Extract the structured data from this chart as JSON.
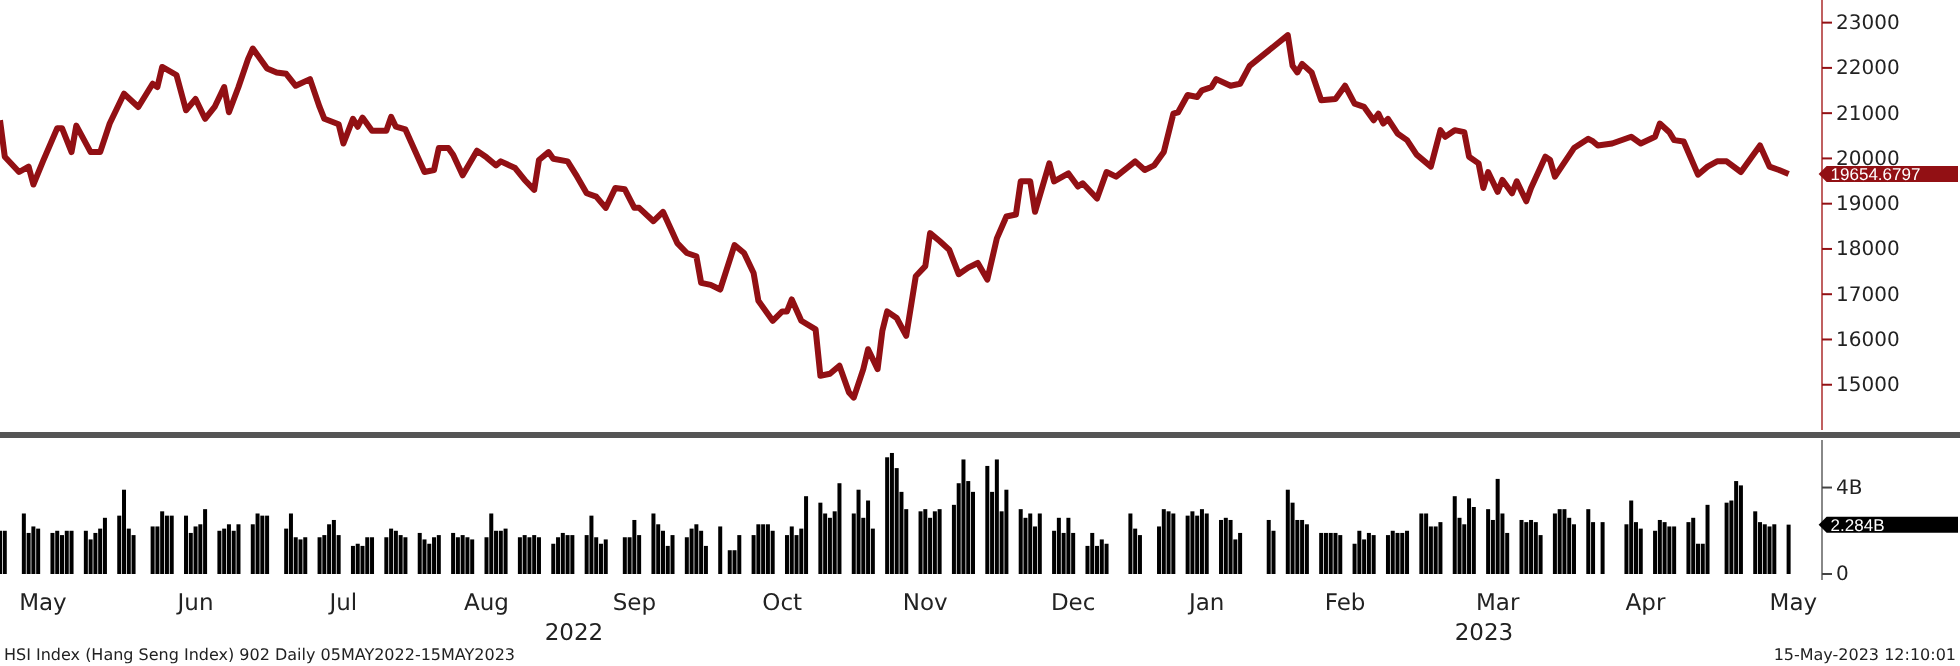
{
  "chart_data": [
    {
      "type": "line",
      "xlim": [
        "2022-05-05",
        "2023-05-22"
      ],
      "ylim": [
        14000,
        23500
      ],
      "yticks": [
        15000,
        16000,
        17000,
        18000,
        19000,
        20000,
        21000,
        22000,
        23000
      ],
      "tick_labels": "y",
      "grid": false,
      "series": [
        {
          "color": "#921014",
          "x": [
            "2022-05-05",
            "2022-05-06",
            "2022-05-09",
            "2022-05-11",
            "2022-05-12",
            "2022-05-14",
            "2022-05-17",
            "2022-05-18",
            "2022-05-20",
            "2022-05-21",
            "2022-05-24",
            "2022-05-26",
            "2022-05-28",
            "2022-05-31",
            "2022-06-03",
            "2022-06-06",
            "2022-06-07",
            "2022-06-08",
            "2022-06-11",
            "2022-06-13",
            "2022-06-15",
            "2022-06-17",
            "2022-06-19",
            "2022-06-21",
            "2022-06-22",
            "2022-06-24",
            "2022-06-26",
            "2022-06-27",
            "2022-06-30",
            "2022-07-02",
            "2022-07-04",
            "2022-07-06",
            "2022-07-09",
            "2022-07-11",
            "2022-07-12",
            "2022-07-15",
            "2022-07-16",
            "2022-07-18",
            "2022-07-19",
            "2022-07-20",
            "2022-07-22",
            "2022-07-25",
            "2022-07-26",
            "2022-07-27",
            "2022-07-29",
            "2022-07-31",
            "2022-08-02",
            "2022-08-04",
            "2022-08-05",
            "2022-08-07",
            "2022-08-08",
            "2022-08-10",
            "2022-08-13",
            "2022-08-15",
            "2022-08-17",
            "2022-08-18",
            "2022-08-21",
            "2022-08-23",
            "2022-08-25",
            "2022-08-26",
            "2022-08-28",
            "2022-08-29",
            "2022-09-01",
            "2022-09-03",
            "2022-09-05",
            "2022-09-07",
            "2022-09-09",
            "2022-09-11",
            "2022-09-13",
            "2022-09-15",
            "2022-09-16",
            "2022-09-19",
            "2022-09-21",
            "2022-09-24",
            "2022-09-26",
            "2022-09-28",
            "2022-09-29",
            "2022-10-01",
            "2022-10-03",
            "2022-10-06",
            "2022-10-08",
            "2022-10-10",
            "2022-10-11",
            "2022-10-14",
            "2022-10-16",
            "2022-10-17",
            "2022-10-18",
            "2022-10-20",
            "2022-10-23",
            "2022-10-24",
            "2022-10-26",
            "2022-10-28",
            "2022-10-30",
            "2022-10-31",
            "2022-11-02",
            "2022-11-03",
            "2022-11-05",
            "2022-11-06",
            "2022-11-07",
            "2022-11-09",
            "2022-11-11",
            "2022-11-13",
            "2022-11-15",
            "2022-11-16",
            "2022-11-18",
            "2022-11-20",
            "2022-11-22",
            "2022-11-24",
            "2022-11-26",
            "2022-11-28",
            "2022-11-30",
            "2022-12-02",
            "2022-12-04",
            "2022-12-05",
            "2022-12-07",
            "2022-12-08",
            "2022-12-11",
            "2022-12-12",
            "2022-12-15",
            "2022-12-17",
            "2022-12-18",
            "2022-12-21",
            "2022-12-23",
            "2022-12-25",
            "2022-12-29",
            "2022-12-31",
            "2023-01-02",
            "2023-01-04",
            "2023-01-06",
            "2023-01-07",
            "2023-01-09",
            "2023-01-11",
            "2023-01-12",
            "2023-01-14",
            "2023-01-15",
            "2023-01-18",
            "2023-01-20",
            "2023-01-22",
            "2023-01-30",
            "2023-01-31",
            "2023-02-01",
            "2023-02-02",
            "2023-02-04",
            "2023-02-06",
            "2023-02-09",
            "2023-02-11",
            "2023-02-13",
            "2023-02-15",
            "2023-02-17",
            "2023-02-18",
            "2023-02-19",
            "2023-02-20",
            "2023-02-22",
            "2023-02-24",
            "2023-02-26",
            "2023-03-01",
            "2023-03-03",
            "2023-03-04",
            "2023-03-06",
            "2023-03-08",
            "2023-03-09",
            "2023-03-11",
            "2023-03-12",
            "2023-03-13",
            "2023-03-15",
            "2023-03-16",
            "2023-03-18",
            "2023-03-19",
            "2023-03-21",
            "2023-03-22",
            "2023-03-25",
            "2023-03-26",
            "2023-03-27",
            "2023-03-31",
            "2023-04-03",
            "2023-04-04",
            "2023-04-05",
            "2023-04-08",
            "2023-04-12",
            "2023-04-14",
            "2023-04-17",
            "2023-04-18",
            "2023-04-20",
            "2023-04-21",
            "2023-04-23",
            "2023-04-26",
            "2023-04-28",
            "2023-04-30",
            "2023-05-02",
            "2023-05-05",
            "2023-05-07",
            "2023-05-09",
            "2023-05-11",
            "2023-05-13",
            "2023-05-15"
          ],
          "values": [
            20844,
            20038,
            19700,
            19819,
            19423,
            19935,
            20668,
            20668,
            20140,
            20725,
            20140,
            20140,
            20770,
            21430,
            21137,
            21650,
            21577,
            22020,
            21843,
            21064,
            21313,
            20875,
            21137,
            21577,
            21020,
            21577,
            22194,
            22428,
            21988,
            21900,
            21870,
            21605,
            21752,
            21137,
            20875,
            20756,
            20330,
            20875,
            20700,
            20902,
            20610,
            20610,
            20918,
            20700,
            20640,
            20170,
            19700,
            19744,
            20228,
            20228,
            20083,
            19626,
            20170,
            20024,
            19847,
            19935,
            19788,
            19524,
            19304,
            19964,
            20140,
            19994,
            19935,
            19597,
            19230,
            19157,
            18908,
            19348,
            19318,
            18908,
            18908,
            18613,
            18820,
            18130,
            17910,
            17839,
            17250,
            17206,
            17104,
            18085,
            17910,
            17470,
            16853,
            16413,
            16620,
            16620,
            16884,
            16413,
            16224,
            15199,
            15243,
            15419,
            14829,
            14715,
            15344,
            15784,
            15344,
            16193,
            16620,
            16474,
            16079,
            17398,
            17619,
            18350,
            18174,
            17984,
            17442,
            17588,
            17691,
            17324,
            18233,
            18717,
            18760,
            19493,
            19493,
            18820,
            19891,
            19493,
            19669,
            19379,
            19451,
            19115,
            19700,
            19597,
            19935,
            19744,
            19847,
            20140,
            20989,
            21020,
            21401,
            21357,
            21504,
            21577,
            21752,
            21605,
            21650,
            22045,
            22723,
            22045,
            21900,
            22089,
            21900,
            21284,
            21313,
            21605,
            21209,
            21137,
            20844,
            20989,
            20770,
            20875,
            20551,
            20404,
            20083,
            19819,
            20624,
            20479,
            20624,
            20580,
            20038,
            19891,
            19348,
            19700,
            19260,
            19524,
            19230,
            19493,
            19053,
            19348,
            20038,
            19964,
            19597,
            20228,
            20433,
            20374,
            20286,
            20330,
            20479,
            20330,
            20479,
            20770,
            20580,
            20404,
            20374,
            19641,
            19819,
            19935,
            19935,
            19700,
            19994,
            20286,
            19819,
            19744,
            19654.6797
          ]
        }
      ],
      "annotations": [
        {
          "text": "19654.6797",
          "x": "2023-05-15",
          "y": 19654.6797
        }
      ]
    },
    {
      "type": "bar",
      "xlim": [
        "2022-05-05",
        "2023-05-22"
      ],
      "ylim": [
        0,
        6.2
      ],
      "yticks": [
        {
          "value": 0,
          "label": "0"
        },
        {
          "value": 4,
          "label": "4B"
        }
      ],
      "xticks": [
        {
          "value": "2022-05-14",
          "label": "May"
        },
        {
          "value": "2022-06-15",
          "label": "Jun"
        },
        {
          "value": "2022-07-16",
          "label": "Jul"
        },
        {
          "value": "2022-08-15",
          "label": "Aug"
        },
        {
          "value": "2022-09-15",
          "label": "Sep"
        },
        {
          "value": "2022-10-16",
          "label": "Oct"
        },
        {
          "value": "2022-11-15",
          "label": "Nov"
        },
        {
          "value": "2022-12-16",
          "label": "Dec"
        },
        {
          "value": "2023-01-13",
          "label": "Jan"
        },
        {
          "value": "2023-02-11",
          "label": "Feb"
        },
        {
          "value": "2023-03-15",
          "label": "Mar"
        },
        {
          "value": "2023-04-15",
          "label": "Apr"
        },
        {
          "value": "2023-05-16",
          "label": "May"
        }
      ],
      "grid": false,
      "series": [
        {
          "color": "#000000",
          "x": [
            "2022-05-05",
            "2022-05-06",
            "2022-05-10",
            "2022-05-11",
            "2022-05-12",
            "2022-05-13",
            "2022-05-16",
            "2022-05-17",
            "2022-05-18",
            "2022-05-19",
            "2022-05-20",
            "2022-05-23",
            "2022-05-24",
            "2022-05-25",
            "2022-05-26",
            "2022-05-27",
            "2022-05-30",
            "2022-05-31",
            "2022-06-01",
            "2022-06-02",
            "2022-06-06",
            "2022-06-07",
            "2022-06-08",
            "2022-06-09",
            "2022-06-10",
            "2022-06-13",
            "2022-06-14",
            "2022-06-15",
            "2022-06-16",
            "2022-06-17",
            "2022-06-20",
            "2022-06-21",
            "2022-06-22",
            "2022-06-23",
            "2022-06-24",
            "2022-06-27",
            "2022-06-28",
            "2022-06-29",
            "2022-06-30",
            "2022-07-04",
            "2022-07-05",
            "2022-07-06",
            "2022-07-07",
            "2022-07-08",
            "2022-07-11",
            "2022-07-12",
            "2022-07-13",
            "2022-07-14",
            "2022-07-15",
            "2022-07-18",
            "2022-07-19",
            "2022-07-20",
            "2022-07-21",
            "2022-07-22",
            "2022-07-25",
            "2022-07-26",
            "2022-07-27",
            "2022-07-28",
            "2022-07-29",
            "2022-08-01",
            "2022-08-02",
            "2022-08-03",
            "2022-08-04",
            "2022-08-05",
            "2022-08-08",
            "2022-08-09",
            "2022-08-10",
            "2022-08-11",
            "2022-08-12",
            "2022-08-15",
            "2022-08-16",
            "2022-08-17",
            "2022-08-18",
            "2022-08-19",
            "2022-08-22",
            "2022-08-23",
            "2022-08-24",
            "2022-08-25",
            "2022-08-26",
            "2022-08-29",
            "2022-08-30",
            "2022-08-31",
            "2022-09-01",
            "2022-09-02",
            "2022-09-05",
            "2022-09-06",
            "2022-09-07",
            "2022-09-08",
            "2022-09-09",
            "2022-09-13",
            "2022-09-14",
            "2022-09-15",
            "2022-09-16",
            "2022-09-19",
            "2022-09-20",
            "2022-09-21",
            "2022-09-22",
            "2022-09-23",
            "2022-09-26",
            "2022-09-27",
            "2022-09-28",
            "2022-09-29",
            "2022-09-30",
            "2022-10-03",
            "2022-10-05",
            "2022-10-06",
            "2022-10-07",
            "2022-10-10",
            "2022-10-11",
            "2022-10-12",
            "2022-10-13",
            "2022-10-14",
            "2022-10-17",
            "2022-10-18",
            "2022-10-19",
            "2022-10-20",
            "2022-10-21",
            "2022-10-24",
            "2022-10-25",
            "2022-10-26",
            "2022-10-27",
            "2022-10-28",
            "2022-10-31",
            "2022-11-01",
            "2022-11-02",
            "2022-11-03",
            "2022-11-04",
            "2022-11-07",
            "2022-11-08",
            "2022-11-09",
            "2022-11-10",
            "2022-11-11",
            "2022-11-14",
            "2022-11-15",
            "2022-11-16",
            "2022-11-17",
            "2022-11-18",
            "2022-11-21",
            "2022-11-22",
            "2022-11-23",
            "2022-11-24",
            "2022-11-25",
            "2022-11-28",
            "2022-11-29",
            "2022-11-30",
            "2022-12-01",
            "2022-12-02",
            "2022-12-05",
            "2022-12-06",
            "2022-12-07",
            "2022-12-08",
            "2022-12-09",
            "2022-12-12",
            "2022-12-13",
            "2022-12-14",
            "2022-12-15",
            "2022-12-16",
            "2022-12-19",
            "2022-12-20",
            "2022-12-21",
            "2022-12-22",
            "2022-12-23",
            "2022-12-28",
            "2022-12-29",
            "2022-12-30",
            "2023-01-03",
            "2023-01-04",
            "2023-01-05",
            "2023-01-06",
            "2023-01-09",
            "2023-01-10",
            "2023-01-11",
            "2023-01-12",
            "2023-01-13",
            "2023-01-16",
            "2023-01-17",
            "2023-01-18",
            "2023-01-19",
            "2023-01-20",
            "2023-01-26",
            "2023-01-27",
            "2023-01-30",
            "2023-01-31",
            "2023-02-01",
            "2023-02-02",
            "2023-02-03",
            "2023-02-06",
            "2023-02-07",
            "2023-02-08",
            "2023-02-09",
            "2023-02-10",
            "2023-02-13",
            "2023-02-14",
            "2023-02-15",
            "2023-02-16",
            "2023-02-17",
            "2023-02-20",
            "2023-02-21",
            "2023-02-22",
            "2023-02-23",
            "2023-02-24",
            "2023-02-27",
            "2023-02-28",
            "2023-03-01",
            "2023-03-02",
            "2023-03-03",
            "2023-03-06",
            "2023-03-07",
            "2023-03-08",
            "2023-03-09",
            "2023-03-10",
            "2023-03-13",
            "2023-03-14",
            "2023-03-15",
            "2023-03-16",
            "2023-03-17",
            "2023-03-20",
            "2023-03-21",
            "2023-03-22",
            "2023-03-23",
            "2023-03-24",
            "2023-03-27",
            "2023-03-28",
            "2023-03-29",
            "2023-03-30",
            "2023-03-31",
            "2023-04-03",
            "2023-04-04",
            "2023-04-06",
            "2023-04-11",
            "2023-04-12",
            "2023-04-13",
            "2023-04-14",
            "2023-04-17",
            "2023-04-18",
            "2023-04-19",
            "2023-04-20",
            "2023-04-21",
            "2023-04-24",
            "2023-04-25",
            "2023-04-26",
            "2023-04-27",
            "2023-04-28",
            "2023-05-02",
            "2023-05-03",
            "2023-05-04",
            "2023-05-05",
            "2023-05-08",
            "2023-05-09",
            "2023-05-10",
            "2023-05-11",
            "2023-05-12",
            "2023-05-15"
          ],
          "values": [
            2.0,
            2.0,
            2.8,
            1.9,
            2.2,
            2.1,
            1.9,
            2.0,
            1.8,
            2.0,
            2.0,
            2.0,
            1.6,
            1.9,
            2.1,
            2.6,
            2.7,
            3.9,
            2.1,
            1.8,
            2.2,
            2.2,
            2.9,
            2.7,
            2.7,
            2.7,
            1.9,
            2.2,
            2.3,
            3.0,
            2.0,
            2.1,
            2.3,
            2.0,
            2.3,
            2.3,
            2.8,
            2.7,
            2.7,
            2.1,
            2.8,
            1.7,
            1.6,
            1.7,
            1.7,
            1.8,
            2.3,
            2.5,
            1.8,
            1.3,
            1.4,
            1.3,
            1.7,
            1.7,
            1.7,
            2.1,
            2.0,
            1.8,
            1.7,
            1.9,
            1.6,
            1.4,
            1.7,
            1.8,
            1.9,
            1.7,
            1.8,
            1.7,
            1.6,
            1.7,
            2.8,
            2.0,
            2.0,
            2.1,
            1.7,
            1.8,
            1.7,
            1.8,
            1.7,
            1.4,
            1.7,
            1.9,
            1.8,
            1.8,
            1.8,
            2.7,
            1.7,
            1.4,
            1.6,
            1.7,
            1.7,
            2.5,
            1.8,
            2.8,
            2.3,
            2.0,
            1.3,
            1.8,
            1.7,
            2.1,
            2.3,
            2.0,
            1.3,
            2.2,
            1.1,
            1.1,
            1.8,
            1.8,
            2.3,
            2.3,
            2.3,
            2.0,
            1.8,
            2.2,
            1.8,
            2.1,
            3.6,
            3.3,
            2.8,
            2.6,
            2.9,
            4.2,
            2.8,
            3.9,
            2.6,
            3.4,
            2.1,
            5.4,
            5.6,
            4.9,
            3.8,
            3.0,
            2.9,
            3.0,
            2.6,
            2.9,
            3.0,
            3.2,
            4.2,
            5.3,
            4.3,
            3.8,
            5.0,
            3.8,
            5.3,
            2.9,
            3.9,
            3.0,
            2.6,
            2.8,
            2.2,
            2.8,
            2.0,
            2.6,
            1.9,
            2.6,
            1.9,
            1.3,
            1.9,
            1.3,
            1.6,
            1.4,
            2.8,
            2.1,
            1.8,
            2.2,
            3.0,
            2.9,
            2.8,
            2.7,
            2.9,
            2.7,
            3.0,
            2.8,
            2.5,
            2.6,
            2.5,
            1.6,
            1.9,
            2.5,
            2.0,
            3.9,
            3.3,
            2.5,
            2.5,
            2.3,
            1.9,
            1.9,
            1.9,
            1.9,
            1.8,
            1.4,
            2.0,
            1.6,
            1.9,
            1.8,
            1.8,
            2.0,
            1.9,
            1.9,
            2.0,
            2.8,
            2.8,
            2.2,
            2.2,
            2.4,
            3.6,
            2.6,
            2.3,
            3.5,
            3.1,
            3.0,
            2.5,
            4.4,
            2.8,
            1.9,
            2.5,
            2.4,
            2.5,
            2.4,
            1.8,
            2.8,
            3.0,
            3.0,
            2.6,
            2.3,
            3.0,
            2.4,
            2.4,
            2.3,
            3.4,
            2.4,
            2.1,
            2.0,
            2.5,
            2.4,
            2.2,
            2.2,
            2.4,
            2.6,
            1.4,
            1.4,
            3.2,
            3.3,
            3.4,
            4.3,
            4.1,
            2.9,
            2.4,
            2.3,
            2.2,
            2.3,
            2.284
          ]
        }
      ],
      "annotations": [
        {
          "text": "2.284B",
          "x": "2023-05-15",
          "y": 2.284
        },
        "2022",
        "2023",
        "HSI Index (Hang Seng Index) 902  Daily 05MAY2022-15MAY2023",
        "15-May-2023 12:10:01"
      ]
    }
  ]
}
